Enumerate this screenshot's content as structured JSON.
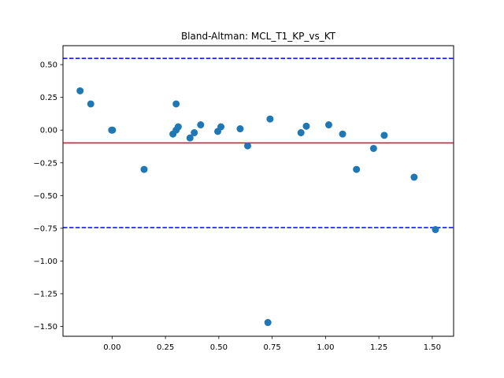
{
  "chart_data": {
    "type": "scatter",
    "title": "Bland-Altman: MCL_T1_KP_vs_KT",
    "xlabel": "",
    "ylabel": "",
    "xlim": [
      -0.23,
      1.6
    ],
    "ylim": [
      -1.575,
      0.645
    ],
    "xticks": [
      0.0,
      0.25,
      0.5,
      0.75,
      1.0,
      1.25,
      1.5
    ],
    "xtick_labels": [
      "0.00",
      "0.25",
      "0.50",
      "0.75",
      "1.00",
      "1.25",
      "1.50"
    ],
    "yticks": [
      0.5,
      0.25,
      0.0,
      -0.25,
      -0.5,
      -0.75,
      -1.0,
      -1.25,
      -1.5
    ],
    "ytick_labels": [
      "0.50",
      "0.25",
      "0.00",
      "−0.25",
      "−0.50",
      "−0.75",
      "−1.00",
      "−1.25",
      "−1.50"
    ],
    "grid": false,
    "point_color": "#1f77b4",
    "points": [
      {
        "x": -0.15,
        "y": 0.3
      },
      {
        "x": -0.1,
        "y": 0.2
      },
      {
        "x": -0.002,
        "y": 0.0
      },
      {
        "x": 0.002,
        "y": 0.0
      },
      {
        "x": 0.15,
        "y": -0.3
      },
      {
        "x": 0.285,
        "y": -0.03
      },
      {
        "x": 0.3,
        "y": 0.0
      },
      {
        "x": 0.3,
        "y": 0.2
      },
      {
        "x": 0.31,
        "y": 0.025
      },
      {
        "x": 0.365,
        "y": -0.06
      },
      {
        "x": 0.385,
        "y": -0.02
      },
      {
        "x": 0.415,
        "y": 0.04
      },
      {
        "x": 0.495,
        "y": -0.01
      },
      {
        "x": 0.51,
        "y": 0.025
      },
      {
        "x": 0.6,
        "y": 0.01
      },
      {
        "x": 0.635,
        "y": -0.12
      },
      {
        "x": 0.74,
        "y": 0.085
      },
      {
        "x": 0.73,
        "y": -1.47
      },
      {
        "x": 0.885,
        "y": -0.02
      },
      {
        "x": 0.91,
        "y": 0.03
      },
      {
        "x": 1.015,
        "y": 0.04
      },
      {
        "x": 1.08,
        "y": -0.03
      },
      {
        "x": 1.145,
        "y": -0.3
      },
      {
        "x": 1.225,
        "y": -0.14
      },
      {
        "x": 1.275,
        "y": -0.04
      },
      {
        "x": 1.415,
        "y": -0.36
      },
      {
        "x": 1.515,
        "y": -0.76
      }
    ],
    "reference_lines": [
      {
        "kind": "mean",
        "y": -0.098,
        "color": "#ff0000",
        "style": "solid"
      },
      {
        "kind": "upper_loa",
        "y": 0.548,
        "color": "#0000ff",
        "style": "dashed"
      },
      {
        "kind": "lower_loa",
        "y": -0.745,
        "color": "#0000ff",
        "style": "dashed"
      }
    ]
  }
}
